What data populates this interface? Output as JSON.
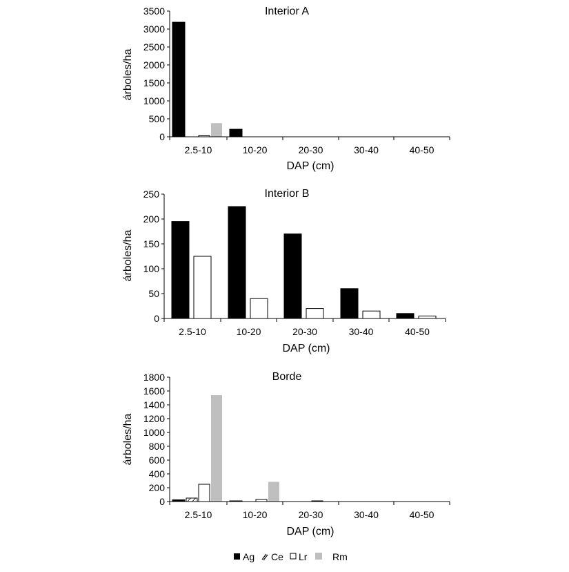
{
  "legend": [
    {
      "key": "Ag",
      "label": "Ag",
      "fill": "#000000",
      "pattern": "solid"
    },
    {
      "key": "Ce",
      "label": "Ce",
      "fill": "#ffffff",
      "pattern": "hatch"
    },
    {
      "key": "Lr",
      "label": "Lr",
      "fill": "#ffffff",
      "pattern": "outline"
    },
    {
      "key": "Rm",
      "label": "Rm",
      "fill": "#bfbfbf",
      "pattern": "solid"
    }
  ],
  "chart_data": [
    {
      "type": "bar",
      "title": "Interior A",
      "xlabel": "DAP (cm)",
      "ylabel": "árboles/ha",
      "categories": [
        "2.5-10",
        "10-20",
        "20-30",
        "30-40",
        "40-50"
      ],
      "ylim": [
        0,
        3500
      ],
      "yticks": [
        "0",
        "500",
        "1000",
        "1500",
        "2000",
        "2500",
        "3000",
        "3500"
      ],
      "series": [
        {
          "name": "Ag",
          "values": [
            3190,
            210,
            0,
            0,
            0
          ]
        },
        {
          "name": "Ce",
          "values": [
            0,
            0,
            0,
            0,
            0
          ]
        },
        {
          "name": "Lr",
          "values": [
            30,
            0,
            0,
            0,
            0
          ]
        },
        {
          "name": "Rm",
          "values": [
            380,
            0,
            0,
            0,
            0
          ]
        }
      ]
    },
    {
      "type": "bar",
      "title": "Interior B",
      "xlabel": "DAP (cm)",
      "ylabel": "árboles/ha",
      "categories": [
        "2.5-10",
        "10-20",
        "20-30",
        "30-40",
        "40-50"
      ],
      "ylim": [
        0,
        250
      ],
      "yticks": [
        "0",
        "50",
        "100",
        "150",
        "200",
        "250"
      ],
      "series": [
        {
          "name": "Ag",
          "values": [
            195,
            225,
            170,
            60,
            10
          ]
        },
        {
          "name": "Lr",
          "values": [
            125,
            40,
            20,
            15,
            5
          ]
        }
      ]
    },
    {
      "type": "bar",
      "title": "Borde",
      "xlabel": "DAP (cm)",
      "ylabel": "árboles/ha",
      "categories": [
        "2.5-10",
        "10-20",
        "20-30",
        "30-40",
        "40-50"
      ],
      "ylim": [
        0,
        1800
      ],
      "yticks": [
        "0",
        "200",
        "400",
        "600",
        "800",
        "1000",
        "1200",
        "1400",
        "1600",
        "1800"
      ],
      "series": [
        {
          "name": "Ag",
          "values": [
            25,
            5,
            0,
            0,
            0
          ]
        },
        {
          "name": "Ce",
          "values": [
            50,
            0,
            0,
            0,
            0
          ]
        },
        {
          "name": "Lr",
          "values": [
            250,
            30,
            8,
            0,
            0
          ]
        },
        {
          "name": "Rm",
          "values": [
            1540,
            285,
            0,
            0,
            0
          ]
        }
      ]
    }
  ]
}
